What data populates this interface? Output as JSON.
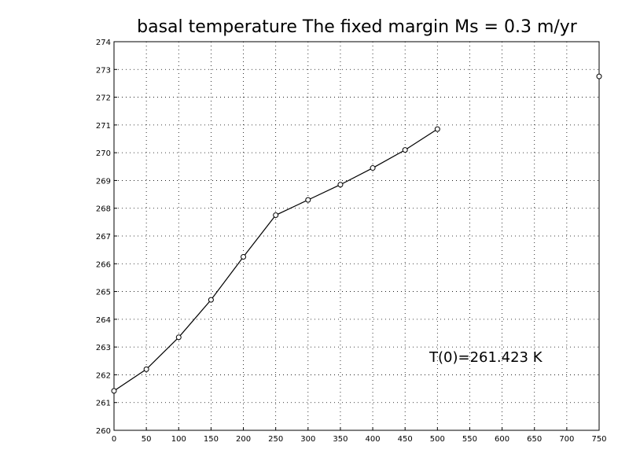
{
  "chart_data": {
    "type": "line",
    "title": "basal temperature  The fixed margin Ms = 0.3 m/yr",
    "xlabel": "",
    "ylabel": "",
    "xlim": [
      0,
      750
    ],
    "ylim": [
      260,
      274
    ],
    "x_ticks": [
      0,
      50,
      100,
      150,
      200,
      250,
      300,
      350,
      400,
      450,
      500,
      550,
      600,
      650,
      700,
      750
    ],
    "y_ticks": [
      260,
      261,
      262,
      263,
      264,
      265,
      266,
      267,
      268,
      269,
      270,
      271,
      272,
      273,
      274
    ],
    "grid": true,
    "series": [
      {
        "x": [
          0,
          50,
          100,
          150,
          200,
          250,
          300,
          350,
          400,
          450,
          500
        ],
        "y": [
          261.42,
          262.2,
          263.35,
          264.7,
          266.25,
          267.75,
          268.3,
          268.85,
          269.45,
          270.1,
          270.85
        ],
        "marker": "circle",
        "color": "#000000"
      }
    ],
    "extra_points": [
      {
        "x": 750,
        "y": 272.75
      }
    ],
    "annotation": "T(0)=261.423  K"
  }
}
